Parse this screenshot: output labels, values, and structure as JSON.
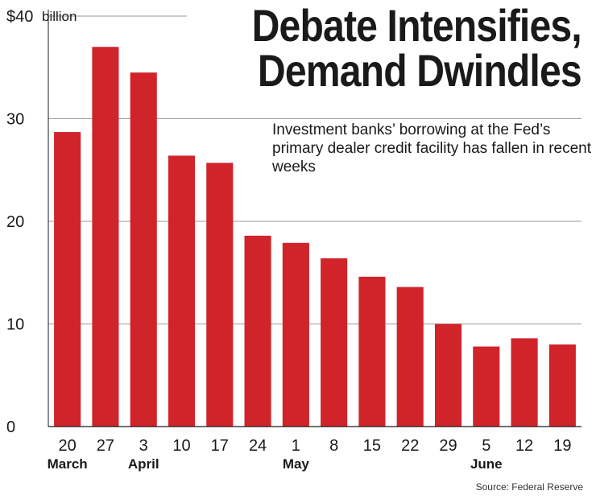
{
  "chart_data": {
    "type": "bar",
    "title": "Debate Intensifies, Demand Dwindles",
    "subtitle": "Investment banks’ borrowing at the Fed’s primary dealer credit facility has fallen in recent weeks",
    "source": "Source: Federal Reserve",
    "unit_label": "billion",
    "categories": [
      "20",
      "27",
      "3",
      "10",
      "17",
      "24",
      "1",
      "8",
      "15",
      "22",
      "29",
      "5",
      "12",
      "19"
    ],
    "months": [
      {
        "label": "March",
        "index": 0
      },
      {
        "label": "April",
        "index": 2
      },
      {
        "label": "May",
        "index": 6
      },
      {
        "label": "June",
        "index": 11
      }
    ],
    "values": [
      28.7,
      37.0,
      34.5,
      26.4,
      25.7,
      18.6,
      17.9,
      16.4,
      14.6,
      13.6,
      10.0,
      7.8,
      8.6,
      8.0
    ],
    "yticks": [
      0,
      10,
      20,
      30,
      40
    ],
    "ytick_labels": [
      "0",
      "10",
      "20",
      "30",
      "$40"
    ],
    "ylim": [
      0,
      40
    ],
    "grid": true,
    "bar_color": "#d1232a",
    "grid_color": "#9a9a9a"
  }
}
